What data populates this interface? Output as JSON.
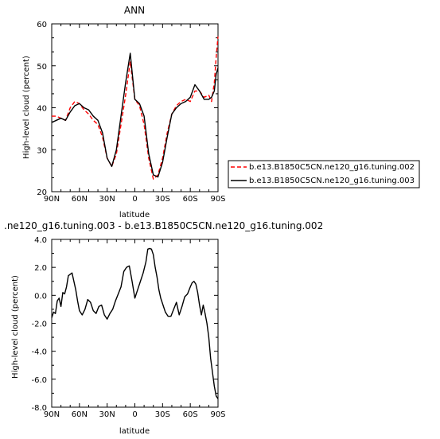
{
  "chart_data": [
    {
      "type": "line",
      "title": "ANN",
      "xlabel": "latitude",
      "ylabel": "High-level cloud (percent)",
      "xlim": [
        90,
        -90
      ],
      "ylim": [
        20,
        60
      ],
      "xticks": [
        90,
        60,
        30,
        0,
        -30,
        -60,
        -90
      ],
      "xtick_labels": [
        "90N",
        "60N",
        "30N",
        "0",
        "30S",
        "60S",
        "90S"
      ],
      "yticks": [
        20,
        30,
        40,
        50,
        60
      ],
      "ytick_labels": [
        "20",
        "30",
        "40",
        "50",
        "60"
      ],
      "legend": "right",
      "series": [
        {
          "name": "b.e13.B1850C5CN.ne120_g16.tuning.002",
          "color": "#ff0000",
          "dash": "dashed",
          "x": [
            90,
            85,
            80,
            75,
            70,
            65,
            60,
            55,
            50,
            45,
            40,
            35,
            30,
            25,
            20,
            15,
            10,
            5,
            0,
            -5,
            -10,
            -15,
            -20,
            -25,
            -30,
            -35,
            -40,
            -45,
            -50,
            -55,
            -60,
            -65,
            -70,
            -75,
            -80,
            -83,
            -86,
            -88,
            -90
          ],
          "y": [
            38,
            38,
            37.5,
            37,
            40,
            41.5,
            41,
            39.5,
            38.5,
            37,
            36,
            33,
            28,
            26,
            29,
            36,
            43,
            51,
            42,
            40.5,
            36,
            28,
            23,
            24,
            28,
            34,
            38.5,
            40.5,
            41.5,
            42,
            41.5,
            44,
            44,
            42.5,
            43,
            41.5,
            46,
            52,
            57
          ]
        },
        {
          "name": "b.e13.B1850C5CN.ne120_g16.tuning.003",
          "color": "#000000",
          "dash": "solid",
          "x": [
            90,
            85,
            80,
            75,
            70,
            65,
            60,
            55,
            50,
            45,
            40,
            35,
            30,
            25,
            20,
            15,
            10,
            5,
            0,
            -5,
            -10,
            -15,
            -20,
            -25,
            -30,
            -35,
            -40,
            -45,
            -50,
            -55,
            -60,
            -65,
            -70,
            -75,
            -80,
            -83,
            -86,
            -88,
            -90
          ],
          "y": [
            36.5,
            37,
            37.5,
            37,
            39,
            40.5,
            41,
            40,
            39.5,
            38,
            37,
            34,
            28,
            26,
            30,
            38,
            46,
            53,
            42,
            41,
            38,
            29,
            24,
            23.5,
            27,
            33,
            38.5,
            40,
            41,
            41.5,
            42.5,
            45.5,
            44,
            42,
            42,
            42.5,
            44,
            48,
            49.5
          ]
        }
      ]
    },
    {
      "type": "line",
      "title": ".ne120_g16.tuning.003 - b.e13.B1850C5CN.ne120_g16.tuning.002",
      "xlabel": "latitude",
      "ylabel": "High-level cloud (percent)",
      "xlim": [
        90,
        -90
      ],
      "ylim": [
        -8,
        4
      ],
      "xticks": [
        90,
        60,
        30,
        0,
        -30,
        -60,
        -90
      ],
      "xtick_labels": [
        "90N",
        "60N",
        "30N",
        "0",
        "30S",
        "60S",
        "90S"
      ],
      "yticks": [
        -8,
        -6,
        -4,
        -2,
        0,
        2,
        4
      ],
      "ytick_labels": [
        "-8.0",
        "-6.0",
        "-4.0",
        "-2.0",
        "0.0",
        "2.0",
        "4.0"
      ],
      "series": [
        {
          "color": "#000000",
          "dash": "solid",
          "x": [
            90,
            88,
            86,
            84,
            82,
            80,
            78,
            76,
            74,
            72,
            70,
            68,
            66,
            64,
            62,
            60,
            57,
            54,
            51,
            48,
            45,
            42,
            39,
            36,
            33,
            30,
            27,
            24,
            21,
            18,
            15,
            12,
            9,
            6,
            3,
            0,
            -3,
            -6,
            -9,
            -12,
            -14,
            -16,
            -18,
            -20,
            -22,
            -24,
            -26,
            -28,
            -30,
            -33,
            -36,
            -39,
            -42,
            -45,
            -48,
            -51,
            -54,
            -57,
            -60,
            -62,
            -64,
            -66,
            -68,
            -70,
            -72,
            -74,
            -76,
            -78,
            -80,
            -82,
            -84,
            -86,
            -88,
            -90
          ],
          "y": [
            -1.6,
            -1.2,
            -1.3,
            -0.4,
            -0.2,
            -0.8,
            0.2,
            0.1,
            0.6,
            1.4,
            1.5,
            1.6,
            1.0,
            0.4,
            -0.4,
            -1.1,
            -1.4,
            -1.0,
            -0.3,
            -0.5,
            -1.1,
            -1.3,
            -0.8,
            -0.7,
            -1.4,
            -1.7,
            -1.3,
            -1.0,
            -0.4,
            0.1,
            0.6,
            1.7,
            2.0,
            2.1,
            1.0,
            -0.2,
            0.4,
            1.0,
            1.6,
            2.4,
            3.3,
            3.35,
            3.3,
            2.9,
            2.0,
            1.3,
            0.4,
            -0.2,
            -0.6,
            -1.2,
            -1.5,
            -1.5,
            -1.0,
            -0.5,
            -1.4,
            -0.8,
            -0.1,
            0.1,
            0.6,
            0.9,
            1.0,
            0.8,
            0.2,
            -0.7,
            -1.4,
            -0.7,
            -1.3,
            -2.0,
            -3.0,
            -4.5,
            -5.5,
            -6.5,
            -7.2,
            -7.4
          ]
        }
      ]
    }
  ]
}
